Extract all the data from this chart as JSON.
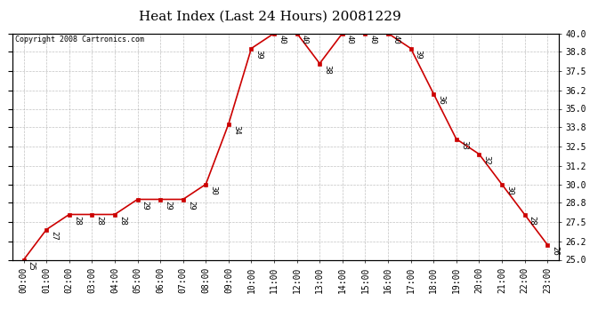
{
  "title": "Heat Index (Last 24 Hours) 20081229",
  "copyright": "Copyright 2008 Cartronics.com",
  "hours": [
    "00:00",
    "01:00",
    "02:00",
    "03:00",
    "04:00",
    "05:00",
    "06:00",
    "07:00",
    "08:00",
    "09:00",
    "10:00",
    "11:00",
    "12:00",
    "13:00",
    "14:00",
    "15:00",
    "16:00",
    "17:00",
    "18:00",
    "19:00",
    "20:00",
    "21:00",
    "22:00",
    "23:00"
  ],
  "y_vals": [
    25,
    27,
    28,
    28,
    28,
    29,
    29,
    29,
    30,
    34,
    39,
    40,
    40,
    38,
    40,
    40,
    40,
    39,
    36,
    33,
    32,
    30,
    28,
    26
  ],
  "line_color": "#cc0000",
  "marker_color": "#cc0000",
  "background_color": "#ffffff",
  "grid_color": "#999999",
  "title_fontsize": 11,
  "copyright_fontsize": 6,
  "label_fontsize": 6.5,
  "tick_fontsize": 7,
  "ylim": [
    25.0,
    40.0
  ],
  "yticks": [
    25.0,
    26.2,
    27.5,
    28.8,
    30.0,
    31.2,
    32.5,
    33.8,
    35.0,
    36.2,
    37.5,
    38.8,
    40.0
  ]
}
